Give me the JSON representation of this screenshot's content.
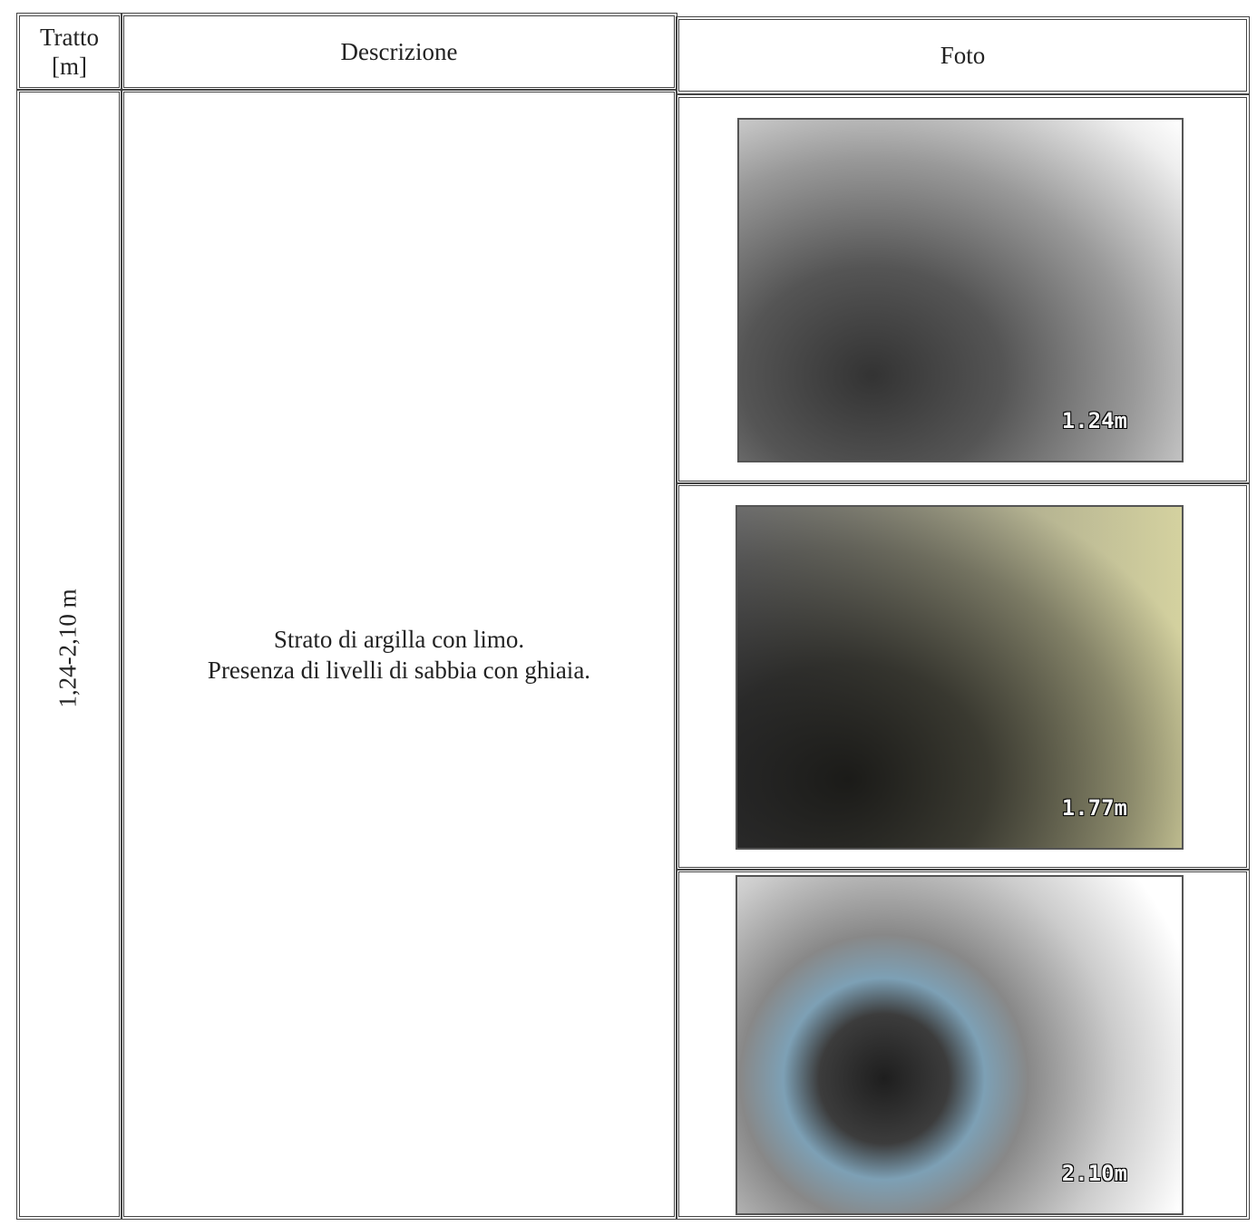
{
  "table": {
    "headers": {
      "tratto": [
        "Tratto",
        "[m]"
      ],
      "descrizione": "Descrizione",
      "foto": "Foto"
    },
    "row": {
      "tratto": "1,24-2,10 m",
      "descrizione": [
        "Strato di argilla con limo.",
        "Presenza di livelli di sabbia con ghiaia."
      ],
      "photos": [
        {
          "label": "1.24m"
        },
        {
          "label": "1.77m"
        },
        {
          "label": "2.10m"
        }
      ]
    }
  }
}
